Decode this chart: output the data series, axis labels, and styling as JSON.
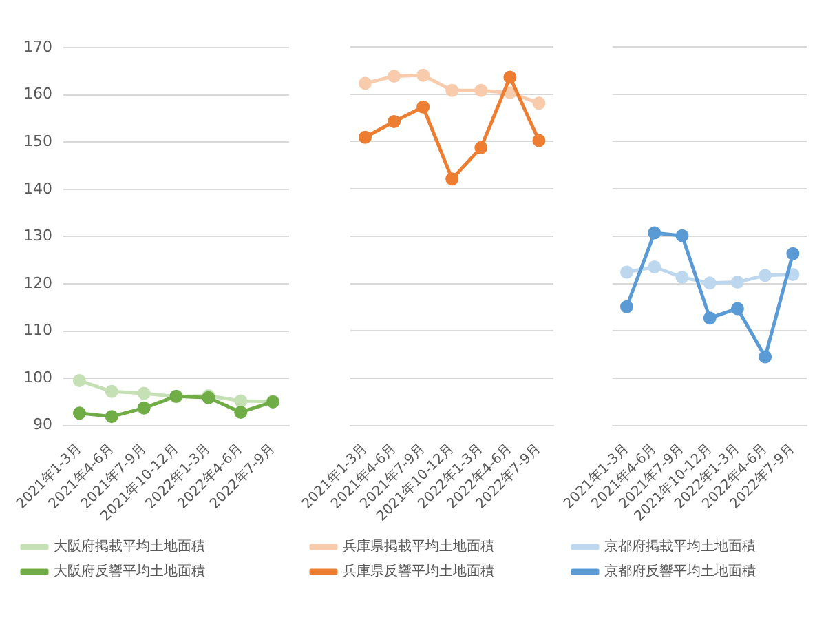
{
  "chart_data": [
    {
      "type": "line",
      "categories": [
        "2021年1-3月",
        "2021年4-6月",
        "2021年7-9月",
        "2021年10-12月",
        "2022年1-3月",
        "2022年4-6月",
        "2022年7-9月"
      ],
      "series": [
        {
          "name": "大阪府掲載平均土地面積",
          "color": "#c5e0b4",
          "values": [
            99.5,
            97.2,
            96.8,
            96.1,
            96.3,
            95.2,
            95.1
          ]
        },
        {
          "name": "大阪府反響平均土地面積",
          "color": "#70ad47",
          "values": [
            92.6,
            91.9,
            93.7,
            96.2,
            95.9,
            92.8,
            95.0
          ]
        }
      ],
      "ylim": [
        90,
        170
      ],
      "yticks": [
        90,
        100,
        110,
        120,
        130,
        140,
        150,
        160,
        170
      ],
      "grid": "y",
      "legend": "bottom",
      "marker": "circle"
    },
    {
      "type": "line",
      "categories": [
        "2021年1-3月",
        "2021年4-6月",
        "2021年7-9月",
        "2021年10-12月",
        "2022年1-3月",
        "2022年4-6月",
        "2022年7-9月"
      ],
      "series": [
        {
          "name": "兵庫県掲載平均土地面積",
          "color": "#f8cbad",
          "values": [
            162.3,
            163.8,
            164.0,
            160.8,
            160.8,
            160.3,
            158.1
          ]
        },
        {
          "name": "兵庫県反響平均土地面積",
          "color": "#ed7d31",
          "values": [
            150.9,
            154.2,
            157.3,
            142.1,
            148.7,
            163.6,
            150.2
          ]
        }
      ],
      "ylim": [
        90,
        170
      ],
      "yticks": [
        90,
        100,
        110,
        120,
        130,
        140,
        150,
        160,
        170
      ],
      "grid": "y",
      "legend": "bottom",
      "marker": "circle",
      "tick_labels": "x"
    },
    {
      "type": "line",
      "categories": [
        "2021年1-3月",
        "2021年4-6月",
        "2021年7-9月",
        "2021年10-12月",
        "2022年1-3月",
        "2022年4-6月",
        "2022年7-9月"
      ],
      "series": [
        {
          "name": "京都府掲載平均土地面積",
          "color": "#bdd7ee",
          "values": [
            122.4,
            123.5,
            121.3,
            120.1,
            120.3,
            121.7,
            121.9
          ]
        },
        {
          "name": "京都府反響平均土地面積",
          "color": "#5b9bd5",
          "values": [
            115.1,
            130.7,
            130.1,
            112.7,
            114.7,
            104.5,
            126.3
          ]
        }
      ],
      "ylim": [
        90,
        170
      ],
      "yticks": [
        90,
        100,
        110,
        120,
        130,
        140,
        150,
        160,
        170
      ],
      "grid": "y",
      "legend": "bottom",
      "marker": "circle",
      "tick_labels": "x"
    }
  ]
}
